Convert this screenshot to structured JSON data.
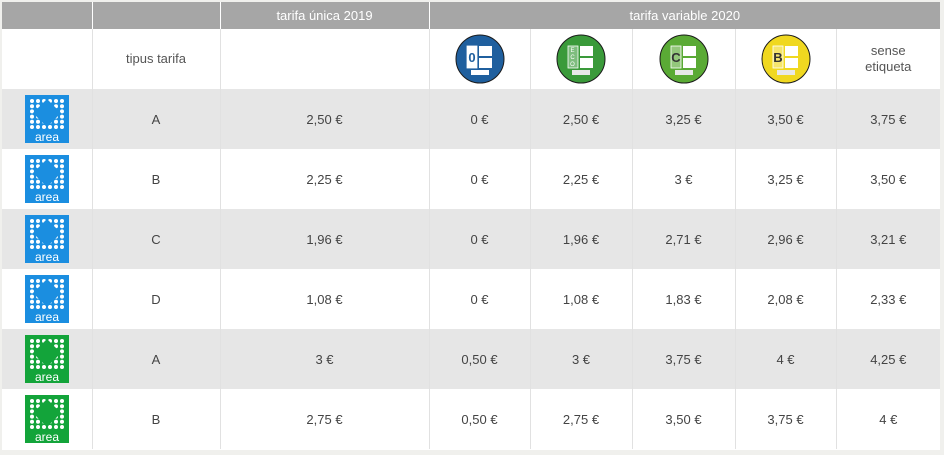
{
  "header": {
    "empty1": "",
    "empty2": "",
    "tarifa_unica": "tarifa única 2019",
    "tarifa_variable": "tarifa variable 2020"
  },
  "subheader": {
    "tipus_tarifa": "tipus tarifa",
    "sense_etiqueta_line1": "sense",
    "sense_etiqueta_line2": "etiqueta",
    "badges": [
      {
        "icon": "label-0-icon",
        "letter": "0",
        "color": "#1f5f9e"
      },
      {
        "icon": "label-eco-icon",
        "letter": "ECO",
        "color": "#3a9a3a"
      },
      {
        "icon": "label-c-icon",
        "letter": "C",
        "color": "#5aaa35"
      },
      {
        "icon": "label-b-icon",
        "letter": "B",
        "color": "#f0d820"
      }
    ]
  },
  "logo_text": "area",
  "colors": {
    "blue_area": "#1b8ee0",
    "green_area": "#13a43a"
  },
  "rows": [
    {
      "zone": "blue",
      "tipus": "A",
      "unica": "2,50 €",
      "cero": "0 €",
      "eco": "2,50 €",
      "c": "3,25 €",
      "b": "3,50 €",
      "sense": "3,75 €"
    },
    {
      "zone": "blue",
      "tipus": "B",
      "unica": "2,25 €",
      "cero": "0 €",
      "eco": "2,25 €",
      "c": "3 €",
      "b": "3,25 €",
      "sense": "3,50 €"
    },
    {
      "zone": "blue",
      "tipus": "C",
      "unica": "1,96 €",
      "cero": "0 €",
      "eco": "1,96 €",
      "c": "2,71 €",
      "b": "2,96 €",
      "sense": "3,21 €"
    },
    {
      "zone": "blue",
      "tipus": "D",
      "unica": "1,08 €",
      "cero": "0 €",
      "eco": "1,08 €",
      "c": "1,83 €",
      "b": "2,08 €",
      "sense": "2,33 €"
    },
    {
      "zone": "green",
      "tipus": "A",
      "unica": "3 €",
      "cero": "0,50 €",
      "eco": "3 €",
      "c": "3,75 €",
      "b": "4 €",
      "sense": "4,25 €"
    },
    {
      "zone": "green",
      "tipus": "B",
      "unica": "2,75 €",
      "cero": "0,50 €",
      "eco": "2,75 €",
      "c": "3,50 €",
      "b": "3,75 €",
      "sense": "4 €"
    }
  ]
}
